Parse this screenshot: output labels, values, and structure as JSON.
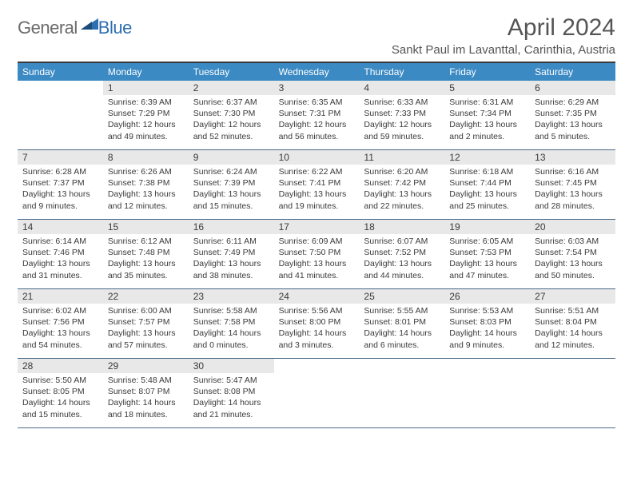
{
  "logo": {
    "general": "General",
    "blue": "Blue"
  },
  "title": "April 2024",
  "location": "Sankt Paul im Lavanttal, Carinthia, Austria",
  "colors": {
    "header_bar": "#3b8ac4",
    "daynum_bg": "#e8e8e8",
    "rule": "#4a6a8a",
    "top_rule": "#3a3a3a",
    "text": "#3a3a3a",
    "logo_gray": "#6b6b6b",
    "logo_blue": "#2f6fb0"
  },
  "dow": [
    "Sunday",
    "Monday",
    "Tuesday",
    "Wednesday",
    "Thursday",
    "Friday",
    "Saturday"
  ],
  "weeks": [
    [
      {
        "n": "",
        "empty": true
      },
      {
        "n": "1",
        "sr": "Sunrise: 6:39 AM",
        "ss": "Sunset: 7:29 PM",
        "d1": "Daylight: 12 hours",
        "d2": "and 49 minutes."
      },
      {
        "n": "2",
        "sr": "Sunrise: 6:37 AM",
        "ss": "Sunset: 7:30 PM",
        "d1": "Daylight: 12 hours",
        "d2": "and 52 minutes."
      },
      {
        "n": "3",
        "sr": "Sunrise: 6:35 AM",
        "ss": "Sunset: 7:31 PM",
        "d1": "Daylight: 12 hours",
        "d2": "and 56 minutes."
      },
      {
        "n": "4",
        "sr": "Sunrise: 6:33 AM",
        "ss": "Sunset: 7:33 PM",
        "d1": "Daylight: 12 hours",
        "d2": "and 59 minutes."
      },
      {
        "n": "5",
        "sr": "Sunrise: 6:31 AM",
        "ss": "Sunset: 7:34 PM",
        "d1": "Daylight: 13 hours",
        "d2": "and 2 minutes."
      },
      {
        "n": "6",
        "sr": "Sunrise: 6:29 AM",
        "ss": "Sunset: 7:35 PM",
        "d1": "Daylight: 13 hours",
        "d2": "and 5 minutes."
      }
    ],
    [
      {
        "n": "7",
        "sr": "Sunrise: 6:28 AM",
        "ss": "Sunset: 7:37 PM",
        "d1": "Daylight: 13 hours",
        "d2": "and 9 minutes."
      },
      {
        "n": "8",
        "sr": "Sunrise: 6:26 AM",
        "ss": "Sunset: 7:38 PM",
        "d1": "Daylight: 13 hours",
        "d2": "and 12 minutes."
      },
      {
        "n": "9",
        "sr": "Sunrise: 6:24 AM",
        "ss": "Sunset: 7:39 PM",
        "d1": "Daylight: 13 hours",
        "d2": "and 15 minutes."
      },
      {
        "n": "10",
        "sr": "Sunrise: 6:22 AM",
        "ss": "Sunset: 7:41 PM",
        "d1": "Daylight: 13 hours",
        "d2": "and 19 minutes."
      },
      {
        "n": "11",
        "sr": "Sunrise: 6:20 AM",
        "ss": "Sunset: 7:42 PM",
        "d1": "Daylight: 13 hours",
        "d2": "and 22 minutes."
      },
      {
        "n": "12",
        "sr": "Sunrise: 6:18 AM",
        "ss": "Sunset: 7:44 PM",
        "d1": "Daylight: 13 hours",
        "d2": "and 25 minutes."
      },
      {
        "n": "13",
        "sr": "Sunrise: 6:16 AM",
        "ss": "Sunset: 7:45 PM",
        "d1": "Daylight: 13 hours",
        "d2": "and 28 minutes."
      }
    ],
    [
      {
        "n": "14",
        "sr": "Sunrise: 6:14 AM",
        "ss": "Sunset: 7:46 PM",
        "d1": "Daylight: 13 hours",
        "d2": "and 31 minutes."
      },
      {
        "n": "15",
        "sr": "Sunrise: 6:12 AM",
        "ss": "Sunset: 7:48 PM",
        "d1": "Daylight: 13 hours",
        "d2": "and 35 minutes."
      },
      {
        "n": "16",
        "sr": "Sunrise: 6:11 AM",
        "ss": "Sunset: 7:49 PM",
        "d1": "Daylight: 13 hours",
        "d2": "and 38 minutes."
      },
      {
        "n": "17",
        "sr": "Sunrise: 6:09 AM",
        "ss": "Sunset: 7:50 PM",
        "d1": "Daylight: 13 hours",
        "d2": "and 41 minutes."
      },
      {
        "n": "18",
        "sr": "Sunrise: 6:07 AM",
        "ss": "Sunset: 7:52 PM",
        "d1": "Daylight: 13 hours",
        "d2": "and 44 minutes."
      },
      {
        "n": "19",
        "sr": "Sunrise: 6:05 AM",
        "ss": "Sunset: 7:53 PM",
        "d1": "Daylight: 13 hours",
        "d2": "and 47 minutes."
      },
      {
        "n": "20",
        "sr": "Sunrise: 6:03 AM",
        "ss": "Sunset: 7:54 PM",
        "d1": "Daylight: 13 hours",
        "d2": "and 50 minutes."
      }
    ],
    [
      {
        "n": "21",
        "sr": "Sunrise: 6:02 AM",
        "ss": "Sunset: 7:56 PM",
        "d1": "Daylight: 13 hours",
        "d2": "and 54 minutes."
      },
      {
        "n": "22",
        "sr": "Sunrise: 6:00 AM",
        "ss": "Sunset: 7:57 PM",
        "d1": "Daylight: 13 hours",
        "d2": "and 57 minutes."
      },
      {
        "n": "23",
        "sr": "Sunrise: 5:58 AM",
        "ss": "Sunset: 7:58 PM",
        "d1": "Daylight: 14 hours",
        "d2": "and 0 minutes."
      },
      {
        "n": "24",
        "sr": "Sunrise: 5:56 AM",
        "ss": "Sunset: 8:00 PM",
        "d1": "Daylight: 14 hours",
        "d2": "and 3 minutes."
      },
      {
        "n": "25",
        "sr": "Sunrise: 5:55 AM",
        "ss": "Sunset: 8:01 PM",
        "d1": "Daylight: 14 hours",
        "d2": "and 6 minutes."
      },
      {
        "n": "26",
        "sr": "Sunrise: 5:53 AM",
        "ss": "Sunset: 8:03 PM",
        "d1": "Daylight: 14 hours",
        "d2": "and 9 minutes."
      },
      {
        "n": "27",
        "sr": "Sunrise: 5:51 AM",
        "ss": "Sunset: 8:04 PM",
        "d1": "Daylight: 14 hours",
        "d2": "and 12 minutes."
      }
    ],
    [
      {
        "n": "28",
        "sr": "Sunrise: 5:50 AM",
        "ss": "Sunset: 8:05 PM",
        "d1": "Daylight: 14 hours",
        "d2": "and 15 minutes."
      },
      {
        "n": "29",
        "sr": "Sunrise: 5:48 AM",
        "ss": "Sunset: 8:07 PM",
        "d1": "Daylight: 14 hours",
        "d2": "and 18 minutes."
      },
      {
        "n": "30",
        "sr": "Sunrise: 5:47 AM",
        "ss": "Sunset: 8:08 PM",
        "d1": "Daylight: 14 hours",
        "d2": "and 21 minutes."
      },
      {
        "n": "",
        "empty": true
      },
      {
        "n": "",
        "empty": true
      },
      {
        "n": "",
        "empty": true
      },
      {
        "n": "",
        "empty": true
      }
    ]
  ]
}
